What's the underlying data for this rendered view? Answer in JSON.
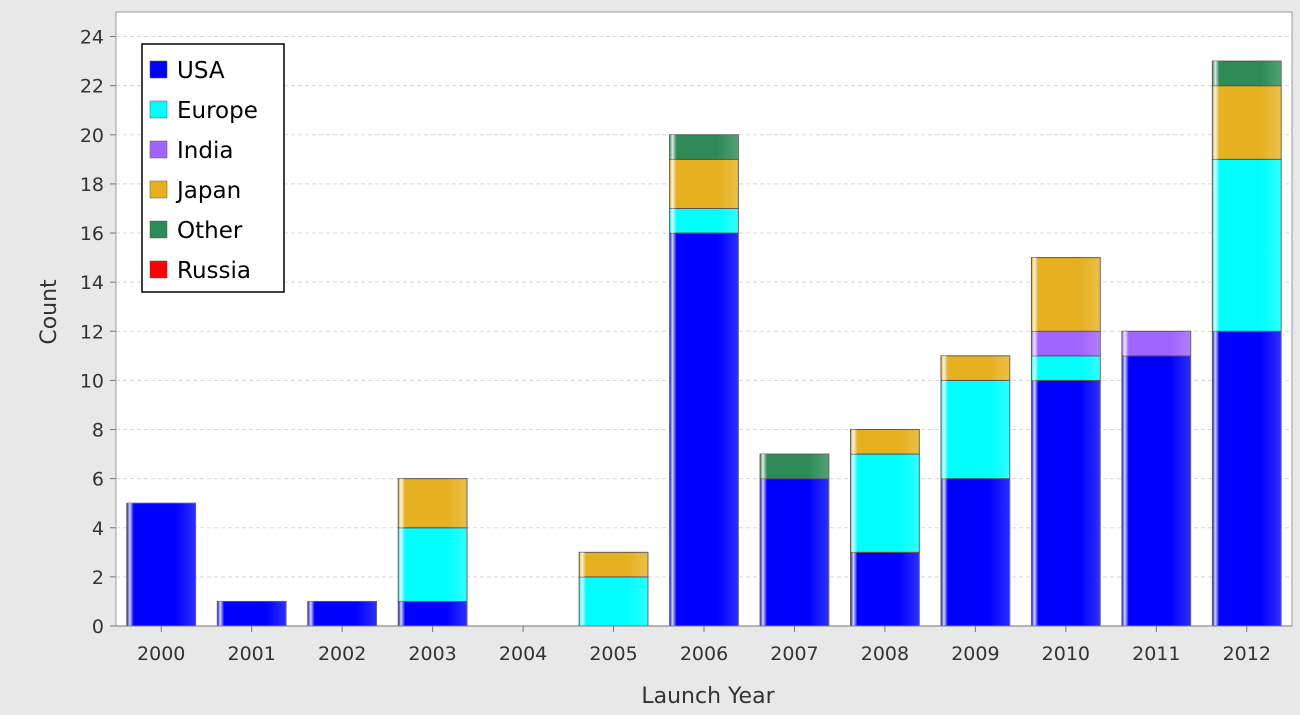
{
  "chart_data": {
    "type": "bar",
    "stacked": true,
    "title": "",
    "xlabel": "Launch Year",
    "ylabel": "Count",
    "ylim": [
      0,
      25
    ],
    "yticks": [
      0,
      2,
      4,
      6,
      8,
      10,
      12,
      14,
      16,
      18,
      20,
      22,
      24
    ],
    "grid": true,
    "legend_position": "top-left",
    "categories": [
      "2000",
      "2001",
      "2002",
      "2003",
      "2004",
      "2005",
      "2006",
      "2007",
      "2008",
      "2009",
      "2010",
      "2011",
      "2012"
    ],
    "series": [
      {
        "name": "USA",
        "color": "#0000ff",
        "values": [
          5,
          1,
          1,
          1,
          0,
          0,
          16,
          6,
          3,
          6,
          10,
          11,
          12
        ]
      },
      {
        "name": "Europe",
        "color": "#00ffff",
        "values": [
          0,
          0,
          0,
          3,
          0,
          2,
          1,
          0,
          4,
          4,
          1,
          0,
          7
        ]
      },
      {
        "name": "India",
        "color": "#a064ff",
        "values": [
          0,
          0,
          0,
          0,
          0,
          0,
          0,
          0,
          0,
          0,
          1,
          1,
          0
        ]
      },
      {
        "name": "Japan",
        "color": "#e6b020",
        "values": [
          0,
          0,
          0,
          2,
          0,
          1,
          2,
          0,
          1,
          1,
          3,
          0,
          3
        ]
      },
      {
        "name": "Other",
        "color": "#2e8b57",
        "values": [
          0,
          0,
          0,
          0,
          0,
          0,
          1,
          1,
          0,
          0,
          0,
          0,
          1
        ]
      },
      {
        "name": "Russia",
        "color": "#ff0000",
        "values": [
          0,
          0,
          0,
          0,
          0,
          0,
          0,
          0,
          0,
          0,
          0,
          0,
          0
        ]
      }
    ]
  }
}
